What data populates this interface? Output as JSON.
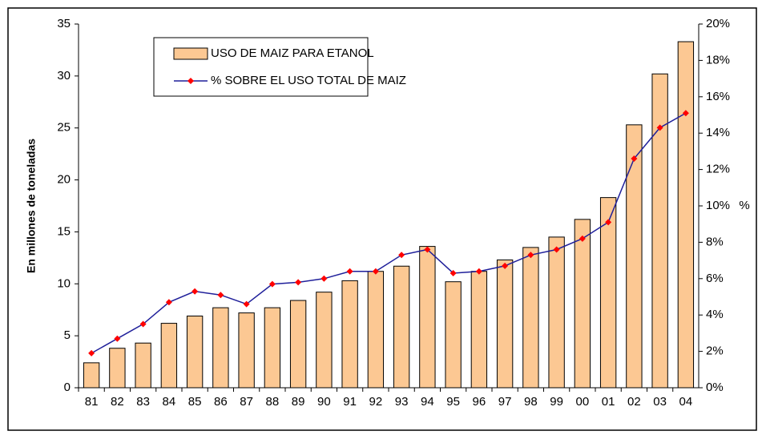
{
  "chart_data": {
    "type": "bar_line",
    "y_label": "En millones de toneladas",
    "y2_label": "%",
    "categories": [
      "81",
      "82",
      "83",
      "84",
      "85",
      "86",
      "87",
      "88",
      "89",
      "90",
      "91",
      "92",
      "93",
      "94",
      "95",
      "96",
      "97",
      "98",
      "99",
      "00",
      "01",
      "02",
      "03",
      "04"
    ],
    "series": [
      {
        "name": "USO DE MAIZ PARA ETANOL",
        "type": "bar",
        "color": "#fcc893",
        "values": [
          2.4,
          3.8,
          4.3,
          6.2,
          6.9,
          7.7,
          7.2,
          7.7,
          8.4,
          9.2,
          10.3,
          11.2,
          11.7,
          13.6,
          10.2,
          11.2,
          12.3,
          13.5,
          14.5,
          16.2,
          18.3,
          25.3,
          30.2,
          33.3
        ]
      },
      {
        "name": "% SOBRE EL USO TOTAL DE MAIZ",
        "type": "line",
        "axis": "y2",
        "color": "#1f1f9a",
        "marker_color": "#ff0000",
        "values": [
          1.9,
          2.7,
          3.5,
          4.7,
          5.3,
          5.1,
          4.6,
          5.7,
          5.8,
          6.0,
          6.4,
          6.4,
          7.3,
          7.6,
          6.3,
          6.4,
          6.7,
          7.3,
          7.6,
          8.2,
          9.1,
          12.6,
          14.3,
          15.1
        ]
      }
    ],
    "ylim": [
      0,
      35
    ],
    "yticks": [
      0,
      5,
      10,
      15,
      20,
      25,
      30,
      35
    ],
    "y2lim": [
      0,
      20
    ],
    "y2ticks": [
      {
        "value": 0,
        "label": "0%"
      },
      {
        "value": 2,
        "label": "2%"
      },
      {
        "value": 4,
        "label": "4%"
      },
      {
        "value": 6,
        "label": "6%"
      },
      {
        "value": 8,
        "label": "8%"
      },
      {
        "value": 10,
        "label": "10%"
      },
      {
        "value": 12,
        "label": "12%"
      },
      {
        "value": 14,
        "label": "14%"
      },
      {
        "value": 16,
        "label": "16%"
      },
      {
        "value": 18,
        "label": "18%"
      },
      {
        "value": 20,
        "label": "20%"
      }
    ]
  }
}
